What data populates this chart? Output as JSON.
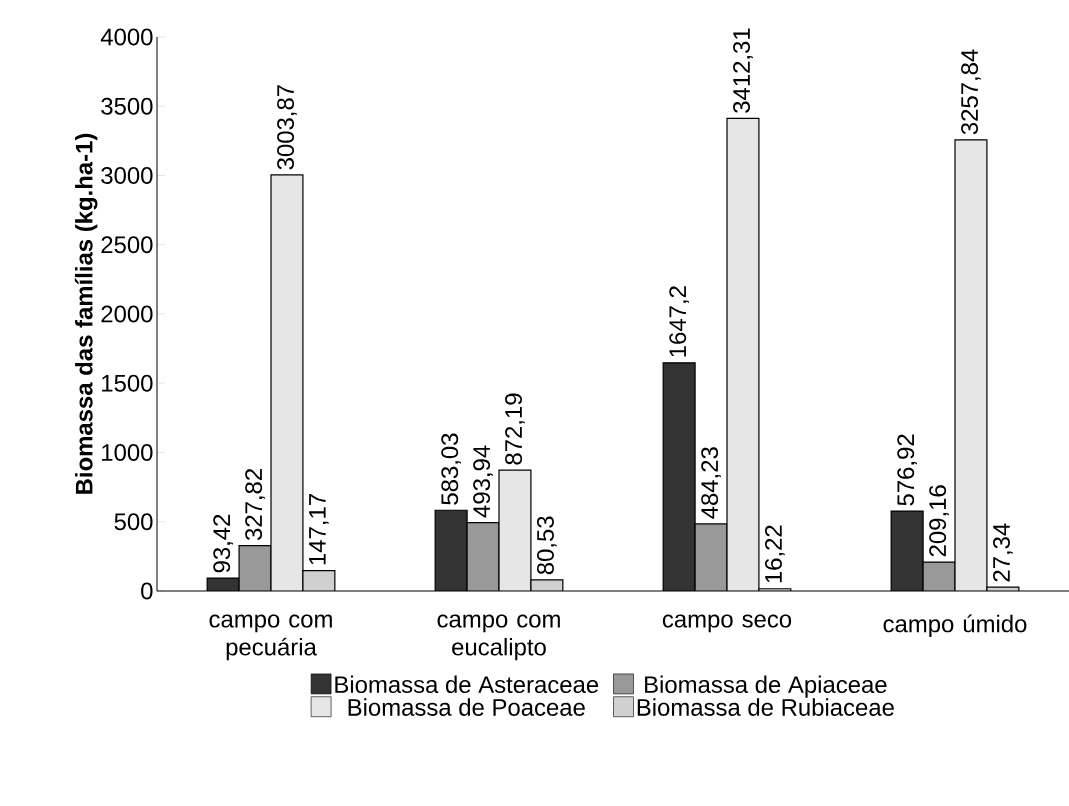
{
  "chart_data": {
    "type": "bar",
    "ylabel": "Biomassa das famílias (kg.ha-1)",
    "categories": [
      "campo com pecuária",
      "campo com eucalipto",
      "campo seco",
      "campo úmido"
    ],
    "series": [
      {
        "name": "Biomassa de Asteraceae",
        "color": "#333333",
        "values": [
          93.42,
          583.03,
          1647.2,
          576.92
        ],
        "value_labels": [
          "93,42",
          "583,03",
          "1647,2",
          "576,92"
        ]
      },
      {
        "name": "Biomassa de Apiaceae",
        "color": "#999999",
        "values": [
          327.82,
          493.94,
          484.23,
          209.16
        ],
        "value_labels": [
          "327,82",
          "493,94",
          "484,23",
          "209,16"
        ]
      },
      {
        "name": "Biomassa de Poaceae",
        "color": "#e6e6e6",
        "values": [
          3003.87,
          872.19,
          3412.31,
          3257.84
        ],
        "value_labels": [
          "3003,87",
          "872,19",
          "3412,31",
          "3257,84"
        ]
      },
      {
        "name": "Biomassa de Rubiaceae",
        "color": "#d0d0d0",
        "values": [
          147.17,
          80.53,
          16.22,
          27.34
        ],
        "value_labels": [
          "147,17",
          "80,53",
          "16,22",
          "27,34"
        ]
      }
    ],
    "ylim": [
      0,
      4000
    ],
    "yticks": [
      0,
      500,
      1000,
      1500,
      2000,
      2500,
      3000,
      3500,
      4000
    ],
    "grid": false,
    "legend": "bottom"
  }
}
